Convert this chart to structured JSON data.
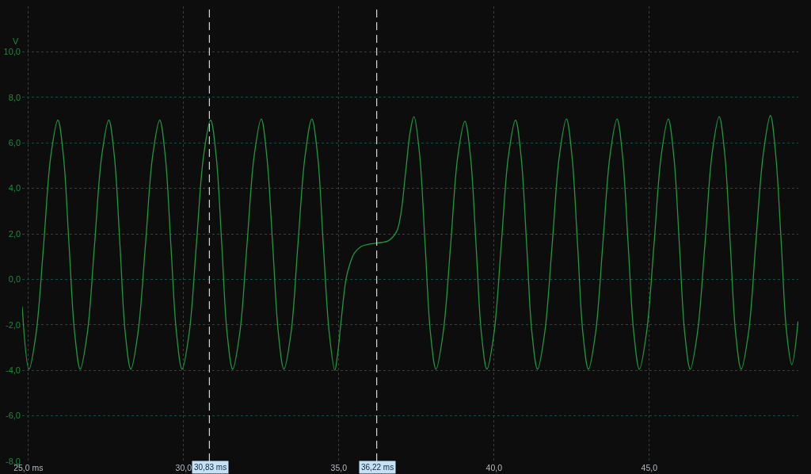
{
  "chart_data": {
    "type": "line",
    "ylabel": "V",
    "x": [
      24.8,
      25.02,
      25.25,
      25.49,
      25.72,
      25.95,
      26.13,
      26.31,
      26.49,
      26.67,
      26.9,
      27.13,
      27.36,
      27.59,
      27.77,
      27.95,
      28.12,
      28.3,
      28.53,
      28.77,
      29.0,
      29.23,
      29.41,
      29.59,
      29.77,
      29.95,
      30.18,
      30.41,
      30.64,
      30.87,
      31.05,
      31.23,
      31.4,
      31.58,
      31.81,
      32.04,
      32.27,
      32.5,
      32.68,
      32.87,
      33.05,
      33.23,
      33.46,
      33.68,
      33.91,
      34.13,
      34.32,
      34.5,
      34.69,
      34.87,
      34.95,
      35.06,
      35.23,
      35.35,
      35.5,
      35.73,
      35.99,
      36.27,
      36.6,
      36.86,
      37.0,
      37.15,
      37.3,
      37.42,
      37.6,
      37.78,
      37.95,
      38.13,
      38.36,
      38.6,
      38.83,
      39.06,
      39.24,
      39.42,
      39.59,
      39.77,
      40.0,
      40.23,
      40.46,
      40.69,
      40.87,
      41.05,
      41.22,
      41.4,
      41.63,
      41.87,
      42.1,
      42.33,
      42.51,
      42.69,
      42.86,
      43.04,
      43.27,
      43.5,
      43.73,
      43.96,
      44.14,
      44.32,
      44.5,
      44.68,
      44.91,
      45.15,
      45.38,
      45.61,
      45.79,
      45.97,
      46.14,
      46.32,
      46.55,
      46.79,
      47.02,
      47.25,
      47.43,
      47.61,
      47.78,
      47.96,
      48.2,
      48.43,
      48.67,
      48.9,
      49.07,
      49.25,
      49.42,
      49.59,
      49.79
    ],
    "series": [
      {
        "color": "#1c9a3e",
        "values": [
          -1.2,
          -3.95,
          -2.35,
          1.5,
          5.4,
          7.0,
          5.4,
          1.5,
          -2.35,
          -3.95,
          -2.35,
          1.5,
          5.4,
          7.0,
          5.4,
          1.5,
          -2.35,
          -3.95,
          -2.35,
          1.5,
          5.4,
          7.0,
          5.4,
          1.5,
          -2.35,
          -3.95,
          -2.35,
          1.5,
          5.4,
          7.0,
          5.4,
          1.5,
          -2.35,
          -3.95,
          -2.35,
          1.5,
          5.4,
          7.05,
          5.4,
          1.5,
          -2.35,
          -3.95,
          -2.35,
          1.5,
          5.4,
          7.05,
          5.4,
          1.5,
          -2.35,
          -4.0,
          -3.4,
          -2.0,
          0.0,
          0.65,
          1.15,
          1.45,
          1.55,
          1.6,
          1.7,
          2.1,
          2.9,
          4.7,
          6.5,
          7.15,
          5.5,
          1.5,
          -2.35,
          -3.95,
          -2.35,
          1.5,
          5.4,
          6.95,
          5.4,
          1.5,
          -2.35,
          -3.95,
          -2.35,
          1.5,
          5.4,
          7.0,
          5.4,
          1.5,
          -2.35,
          -3.95,
          -2.35,
          1.5,
          5.4,
          7.05,
          5.4,
          1.5,
          -2.35,
          -3.95,
          -2.35,
          1.5,
          5.4,
          7.05,
          5.4,
          1.5,
          -2.35,
          -3.95,
          -2.35,
          1.5,
          5.4,
          7.05,
          5.4,
          1.5,
          -2.35,
          -3.95,
          -2.35,
          1.5,
          5.5,
          7.15,
          5.5,
          1.5,
          -2.35,
          -3.95,
          -2.3,
          1.6,
          5.5,
          7.2,
          5.5,
          1.6,
          -2.3,
          -3.75,
          -1.85
        ]
      }
    ],
    "xlim": [
      24.8,
      49.8
    ],
    "ylim": [
      -8,
      12
    ],
    "xticks": [
      {
        "value": 25,
        "label": "25,0 ms"
      },
      {
        "value": 30,
        "label": "30,0"
      },
      {
        "value": 35,
        "label": "35,0"
      },
      {
        "value": 40,
        "label": "40,0"
      },
      {
        "value": 45,
        "label": "45,0"
      }
    ],
    "yticks": [
      {
        "value": -8,
        "label": "-8,0"
      },
      {
        "value": -6,
        "label": "-6,0"
      },
      {
        "value": -4,
        "label": "-4,0"
      },
      {
        "value": -2,
        "label": "-2,0"
      },
      {
        "value": 0,
        "label": "0,0"
      },
      {
        "value": 2,
        "label": "2,0"
      },
      {
        "value": 4,
        "label": "4,0"
      },
      {
        "value": 6,
        "label": "6,0"
      },
      {
        "value": 8,
        "label": "8,0"
      },
      {
        "value": 10,
        "label": "10,0"
      }
    ],
    "grid": true,
    "ref_lines": [
      {
        "axis": "x",
        "value": 30.83,
        "label": "30,83 ms",
        "color": "#d8d8d8",
        "line_style": "dashed"
      },
      {
        "axis": "x",
        "value": 36.22,
        "label": "36,22 ms",
        "color": "#d8d8d8",
        "line_style": "dashed"
      }
    ]
  }
}
